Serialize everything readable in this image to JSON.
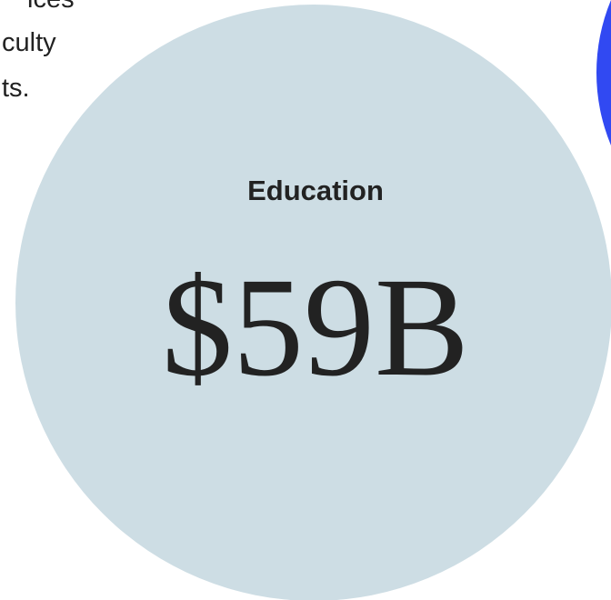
{
  "side_text": {
    "lines": [
      "ices",
      "culty",
      "ts."
    ]
  },
  "card": {
    "label": "Education",
    "amount": "$59B"
  }
}
